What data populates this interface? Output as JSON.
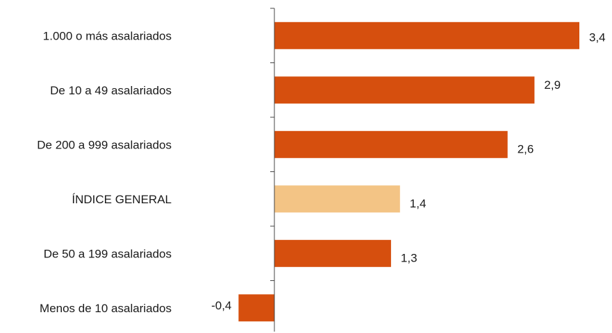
{
  "chart_data": {
    "type": "bar",
    "orientation": "horizontal",
    "categories": [
      "1.000 o más asalariados",
      "De 10 a 49 asalariados",
      "De 200 a 999 asalariados",
      "ÍNDICE GENERAL",
      "De 50 a 199 asalariados",
      "Menos de 10 asalariados"
    ],
    "values": [
      3.4,
      2.9,
      2.6,
      1.4,
      1.3,
      -0.4
    ],
    "value_labels": [
      "3,4",
      "2,9",
      "2,6",
      "1,4",
      "1,3",
      "-0,4"
    ],
    "bar_colors": [
      "#d64f0e",
      "#d64f0e",
      "#d64f0e",
      "#f3c485",
      "#d64f0e",
      "#d64f0e"
    ],
    "xlim": [
      -0.4,
      3.4
    ],
    "grid": false,
    "legend": "none"
  }
}
